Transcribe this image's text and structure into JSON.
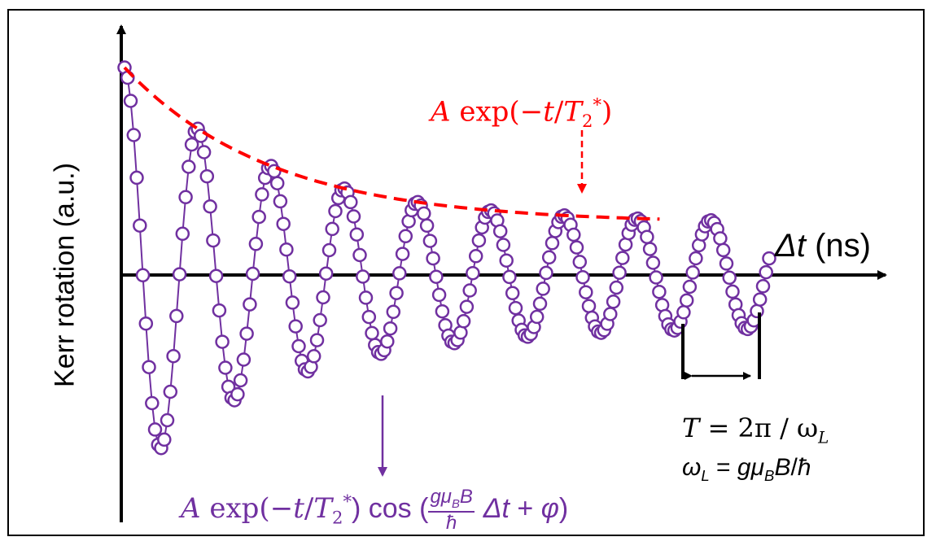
{
  "axes": {
    "ylabel": "Kerr rotation (a.u.)",
    "xlabel_symbol": "Δt",
    "xlabel_unit": " (ns)"
  },
  "annotations": {
    "envelope_formula": {
      "A": "A",
      "exp": " exp(−",
      "t": "t",
      "slash": "/",
      "T": "T",
      "sub": "2",
      "sup": "*",
      "close": ")"
    },
    "signal_formula": {
      "A": "A",
      "exp": " exp(−",
      "t": "t",
      "slash": "/",
      "T": "T",
      "sub": "2",
      "sup": "*",
      "cos": ") cos (",
      "frac_num_g": "g",
      "frac_num_mu": "μ",
      "frac_num_sub": "B",
      "frac_num_B": "B",
      "frac_den": "ħ",
      "dt": "Δt",
      "plus": " + ",
      "phi": "φ",
      "close": ")"
    },
    "period_formula": {
      "T": "T",
      "eq": " =  2π / ω",
      "sub": "L"
    },
    "larmor_formula": {
      "omega": "ω",
      "sub": "L",
      "eq": " = ",
      "g": "g",
      "mu": "μ",
      "mu_sub": "B",
      "B": "B",
      "slash": "/",
      "hbar": "ħ"
    }
  },
  "colors": {
    "envelope": "#ff0000",
    "signal": "#7030a0",
    "axes": "#000000"
  },
  "signal": {
    "period_ns": 1,
    "decay_ns": 2,
    "offset_ratio": 0.25,
    "duration_ns": 8.8,
    "samples_per_period": 24
  }
}
